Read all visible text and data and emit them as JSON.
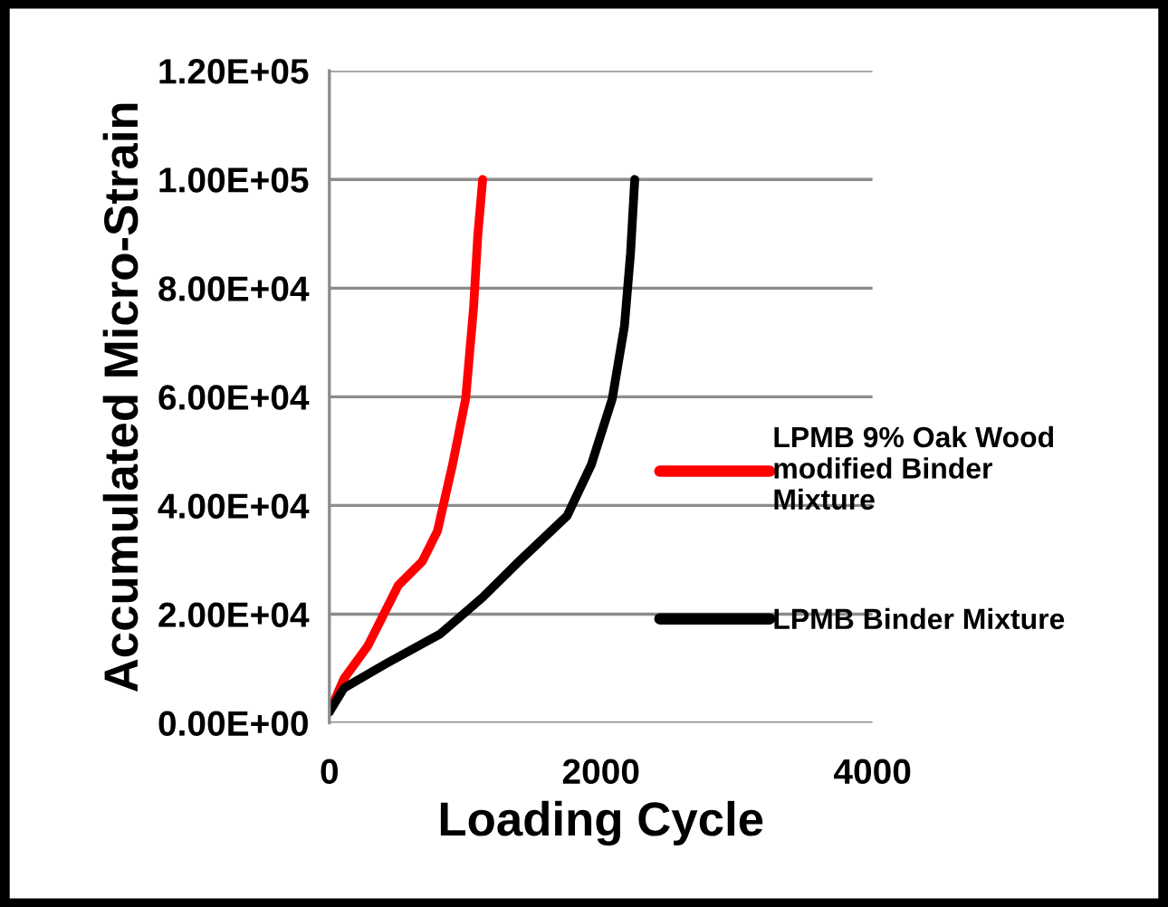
{
  "chart_data": {
    "type": "line",
    "xlabel": "Loading Cycle",
    "ylabel": "Accumulated Micro-Strain",
    "xlim": [
      0,
      4000
    ],
    "xticks": [
      0,
      2000,
      4000
    ],
    "ylim": [
      0,
      120000
    ],
    "yticks": [
      {
        "value": 0,
        "label": "0.00E+00"
      },
      {
        "value": 20000,
        "label": "2.00E+04"
      },
      {
        "value": 40000,
        "label": "4.00E+04"
      },
      {
        "value": 60000,
        "label": "6.00E+04"
      },
      {
        "value": 80000,
        "label": "8.00E+04"
      },
      {
        "value": 100000,
        "label": "1.00E+05"
      },
      {
        "value": 120000,
        "label": "1.20E+05"
      }
    ],
    "grid": "y",
    "legend": "right",
    "marker": "none",
    "line_style": "solid",
    "series": [
      {
        "name": "LPMB 9% Oak Wood\nmodified Binder\nMixture",
        "color": "#ff0000",
        "x": [
          0,
          107,
          284,
          507,
          684,
          796,
          907,
          1004,
          1062,
          1093,
          1129
        ],
        "values": [
          2000,
          8100,
          14200,
          25300,
          29700,
          35300,
          47500,
          59700,
          76400,
          89700,
          100000
        ]
      },
      {
        "name": "LPMB Binder Mixture",
        "color": "#000000",
        "x": [
          0,
          107,
          418,
          818,
          1129,
          1396,
          1751,
          1929,
          2084,
          2173,
          2218,
          2249
        ],
        "values": [
          2000,
          6400,
          10900,
          16400,
          23100,
          29700,
          38100,
          47500,
          59700,
          73000,
          86400,
          100000
        ]
      }
    ]
  }
}
